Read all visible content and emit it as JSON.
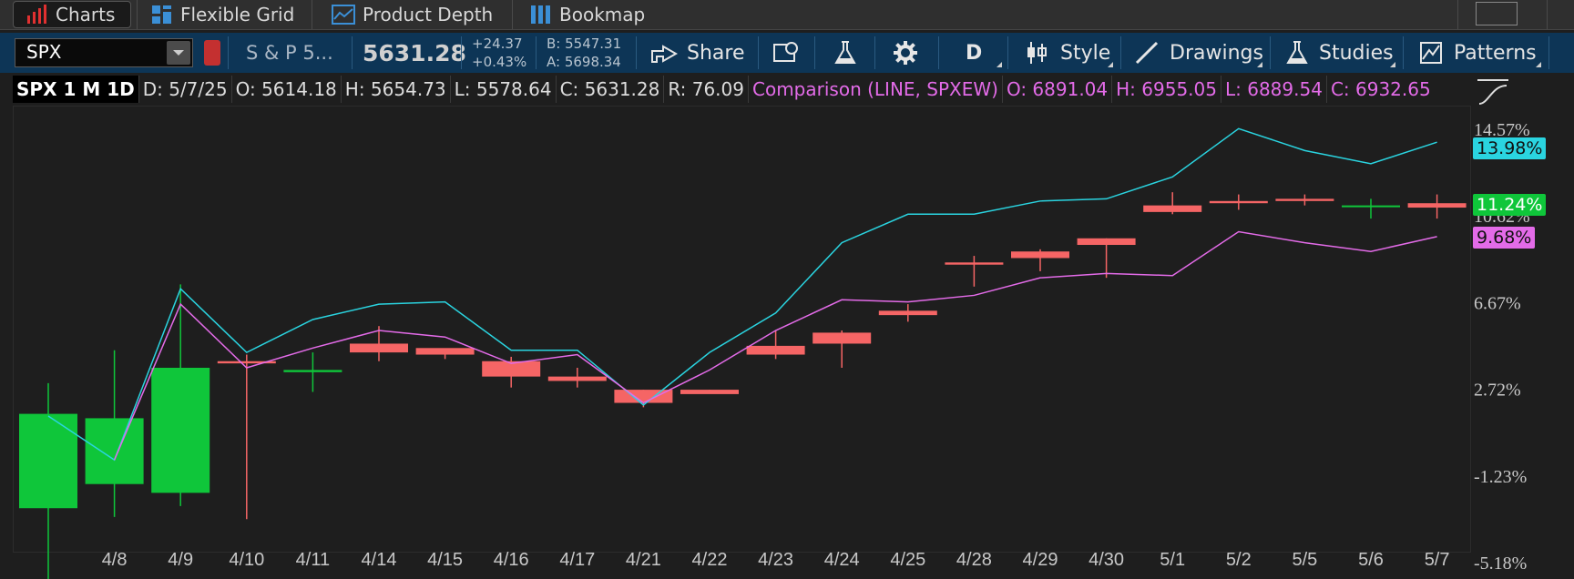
{
  "tabs": [
    {
      "label": "Charts",
      "icon": "bar-chart-icon",
      "active": true
    },
    {
      "label": "Flexible Grid",
      "icon": "grid-icon",
      "active": false
    },
    {
      "label": "Product Depth",
      "icon": "depth-icon",
      "active": false
    },
    {
      "label": "Bookmap",
      "icon": "bookmap-icon",
      "active": false
    }
  ],
  "toolbar": {
    "symbol": "SPX",
    "description": "S & P 5...",
    "last": "5631.28",
    "net_change": "+24.37",
    "pct_change": "+0.43%",
    "bid": "B: 5547.31",
    "ask": "A: 5698.34",
    "share_label": "Share",
    "aggregation_label": "D",
    "style_label": "Style",
    "drawings_label": "Drawings",
    "studies_label": "Studies",
    "patterns_label": "Patterns"
  },
  "info": {
    "title": "SPX 1 M 1D",
    "date": "D: 5/7/25",
    "open": "O: 5614.18",
    "high": "H: 5654.73",
    "low": "L: 5578.64",
    "close": "C: 5631.28",
    "range": "R: 76.09",
    "comparison": "Comparison (LINE, SPXEW)",
    "cmp_open": "O: 6891.04",
    "cmp_high": "H: 6955.05",
    "cmp_low": "L: 6889.54",
    "cmp_close": "C: 6932.65"
  },
  "badges": {
    "cyan": "13.98%",
    "green": "11.24%",
    "magenta": "9.68%"
  },
  "colors": {
    "up": "#0fc63a",
    "down": "#f56565",
    "cyan": "#2ad4e0",
    "magenta": "#e36be8",
    "toolbar": "#0d3556"
  },
  "chart_data": {
    "type": "candlestick",
    "categories": [
      "",
      "4/8",
      "4/9",
      "4/10",
      "4/11",
      "4/14",
      "4/15",
      "4/16",
      "4/17",
      "4/21",
      "4/22",
      "4/23",
      "4/24",
      "4/25",
      "4/28",
      "4/29",
      "4/30",
      "5/1",
      "5/2",
      "5/5",
      "5/6",
      "5/7"
    ],
    "x_tick_labels": [
      "4/8",
      "4/9",
      "4/10",
      "4/11",
      "4/14",
      "4/15",
      "4/16",
      "4/17",
      "4/21",
      "4/22",
      "4/23",
      "4/24",
      "4/25",
      "4/28",
      "4/29",
      "4/30",
      "5/1",
      "5/2",
      "5/5",
      "5/6",
      "5/7"
    ],
    "y_ticks": [
      {
        "value": 14.57,
        "label": "14.57%"
      },
      {
        "value": 10.62,
        "label": "10.62%"
      },
      {
        "value": 6.67,
        "label": "6.67%"
      },
      {
        "value": 2.72,
        "label": "2.72%"
      },
      {
        "value": -1.23,
        "label": "-1.23%"
      },
      {
        "value": -5.18,
        "label": "-5.18%"
      }
    ],
    "ylim": [
      -5.18,
      14.57
    ],
    "candles": [
      {
        "o": -2.7,
        "h": 3.0,
        "l": -6.2,
        "c": 1.6
      },
      {
        "o": -1.6,
        "h": 4.5,
        "l": -3.1,
        "c": 1.4
      },
      {
        "o": -2.0,
        "h": 7.5,
        "l": -2.6,
        "c": 3.7
      },
      {
        "o": 4.0,
        "h": 4.3,
        "l": -3.2,
        "c": 3.9
      },
      {
        "o": 3.5,
        "h": 4.4,
        "l": 2.6,
        "c": 3.6
      },
      {
        "o": 4.8,
        "h": 5.6,
        "l": 4.0,
        "c": 4.4
      },
      {
        "o": 4.6,
        "h": 4.5,
        "l": 4.1,
        "c": 4.3
      },
      {
        "o": 4.0,
        "h": 4.2,
        "l": 2.8,
        "c": 3.3
      },
      {
        "o": 3.3,
        "h": 3.7,
        "l": 2.8,
        "c": 3.1
      },
      {
        "o": 2.7,
        "h": 2.7,
        "l": 1.9,
        "c": 2.1
      },
      {
        "o": 2.7,
        "h": 2.7,
        "l": 2.6,
        "c": 2.5
      },
      {
        "o": 4.7,
        "h": 5.4,
        "l": 4.1,
        "c": 4.3
      },
      {
        "o": 5.3,
        "h": 5.4,
        "l": 3.7,
        "c": 4.8
      },
      {
        "o": 6.3,
        "h": 6.6,
        "l": 5.8,
        "c": 6.1
      },
      {
        "o": 8.5,
        "h": 8.8,
        "l": 7.4,
        "c": 8.4
      },
      {
        "o": 9.0,
        "h": 9.1,
        "l": 8.1,
        "c": 8.7
      },
      {
        "o": 9.6,
        "h": 9.6,
        "l": 7.8,
        "c": 9.3
      },
      {
        "o": 11.1,
        "h": 11.7,
        "l": 10.7,
        "c": 10.8
      },
      {
        "o": 11.3,
        "h": 11.6,
        "l": 10.9,
        "c": 11.2
      },
      {
        "o": 11.4,
        "h": 11.6,
        "l": 11.1,
        "c": 11.3
      },
      {
        "o": 11.1,
        "h": 11.4,
        "l": 10.5,
        "c": 11.1
      },
      {
        "o": 11.2,
        "h": 11.6,
        "l": 10.5,
        "c": 11.0
      }
    ],
    "series": [
      {
        "name": "SPX",
        "color": "cyan",
        "values": [
          1.5,
          -0.5,
          7.3,
          4.4,
          5.9,
          6.6,
          6.7,
          4.5,
          4.5,
          2.0,
          4.4,
          6.2,
          9.4,
          10.7,
          10.7,
          11.3,
          11.4,
          12.4,
          14.6,
          13.6,
          13.0,
          13.98
        ]
      },
      {
        "name": "SPXEW",
        "color": "magenta",
        "values": [
          null,
          -0.5,
          6.6,
          3.7,
          4.6,
          5.4,
          5.1,
          3.9,
          4.3,
          2.1,
          3.6,
          5.4,
          6.8,
          6.7,
          7.0,
          7.8,
          8.0,
          7.9,
          9.9,
          9.4,
          9.0,
          9.68
        ]
      }
    ]
  }
}
